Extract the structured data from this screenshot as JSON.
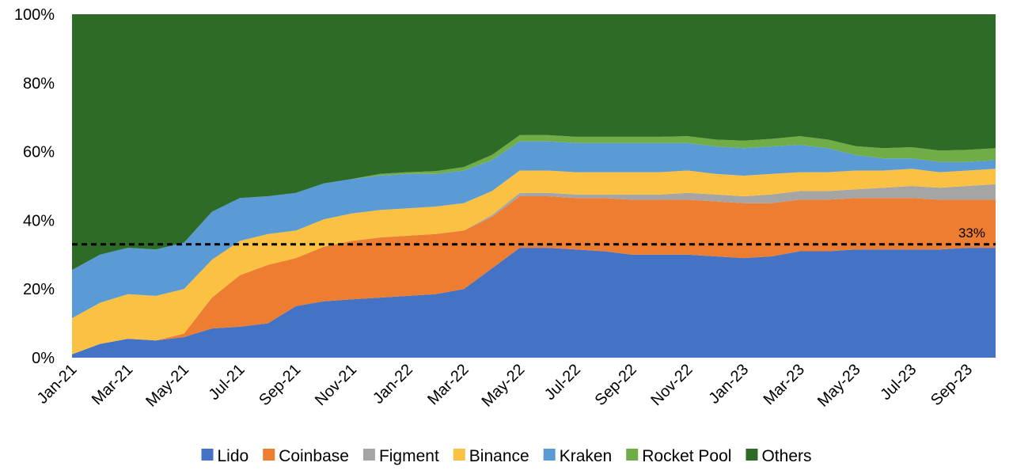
{
  "chart_data": {
    "type": "area",
    "stacked": true,
    "normalized": true,
    "title": "",
    "xlabel": "",
    "ylabel": "",
    "ylim": [
      0,
      100
    ],
    "y_ticks": [
      "0%",
      "20%",
      "40%",
      "60%",
      "80%",
      "100%"
    ],
    "x_tick_labels": [
      "Jan-21",
      "Mar-21",
      "May-21",
      "Jul-21",
      "Sep-21",
      "Nov-21",
      "Jan-22",
      "Mar-22",
      "May-22",
      "Jul-22",
      "Sep-22",
      "Nov-22",
      "Jan-23",
      "Mar-23",
      "May-23",
      "Jul-23",
      "Sep-23"
    ],
    "categories": [
      "Jan-21",
      "Feb-21",
      "Mar-21",
      "Apr-21",
      "May-21",
      "Jun-21",
      "Jul-21",
      "Aug-21",
      "Sep-21",
      "Oct-21",
      "Nov-21",
      "Dec-21",
      "Jan-22",
      "Feb-22",
      "Mar-22",
      "Apr-22",
      "May-22",
      "Jun-22",
      "Jul-22",
      "Aug-22",
      "Sep-22",
      "Oct-22",
      "Nov-22",
      "Dec-22",
      "Jan-23",
      "Feb-23",
      "Mar-23",
      "Apr-23",
      "May-23",
      "Jun-23",
      "Jul-23",
      "Aug-23",
      "Sep-23",
      "Oct-23"
    ],
    "legend_position": "bottom",
    "series": [
      {
        "name": "Lido",
        "color": "#4472C4",
        "values": [
          1,
          4,
          5.5,
          5,
          6,
          8.5,
          9,
          10,
          15,
          16.5,
          17,
          17.5,
          18,
          18.5,
          20,
          26,
          32,
          32,
          31.5,
          31,
          30,
          30,
          30,
          29.5,
          29,
          29.5,
          31,
          31,
          31.5,
          31.5,
          31.5,
          31.5,
          32,
          32
        ]
      },
      {
        "name": "Coinbase",
        "color": "#ED7D31",
        "values": [
          0,
          0,
          0,
          0,
          1,
          9,
          15,
          17,
          14,
          16,
          17,
          17.5,
          17.5,
          17.5,
          17,
          15,
          15,
          15,
          15,
          15.5,
          16,
          16,
          16,
          16,
          16,
          15.5,
          15,
          15,
          15,
          15,
          15,
          14.5,
          14,
          14
        ]
      },
      {
        "name": "Figment",
        "color": "#A5A5A5",
        "values": [
          0,
          0,
          0,
          0,
          0,
          0,
          0,
          0,
          0,
          0,
          0,
          0,
          0,
          0,
          0,
          0.5,
          1,
          1,
          1,
          1,
          1.5,
          1.5,
          2,
          2,
          2,
          2.5,
          2.5,
          2.5,
          2.5,
          3,
          3.5,
          3.5,
          4,
          4.5
        ]
      },
      {
        "name": "Binance",
        "color": "#FBC143",
        "values": [
          10.5,
          12,
          13,
          13,
          13,
          11,
          10,
          9,
          8,
          8,
          8,
          8,
          8,
          8,
          8,
          7,
          6.5,
          6.5,
          6.5,
          6.5,
          6.5,
          6.5,
          6.5,
          6,
          6,
          6,
          5.5,
          5.5,
          5.5,
          5,
          5,
          4.5,
          4.5,
          4.5
        ]
      },
      {
        "name": "Kraken",
        "color": "#5B9BD5",
        "values": [
          14,
          14,
          13.5,
          13.5,
          13.5,
          14,
          12.5,
          11,
          11,
          10.5,
          10,
          10,
          10,
          9.5,
          9.5,
          9,
          8.5,
          8.5,
          8.5,
          8.5,
          8.5,
          8.5,
          8,
          8,
          8,
          8,
          8,
          7,
          4.5,
          3.5,
          3,
          3,
          2.5,
          2.5
        ]
      },
      {
        "name": "Rocket Pool",
        "color": "#70AD47",
        "values": [
          0,
          0,
          0,
          0,
          0,
          0,
          0,
          0,
          0,
          0,
          0,
          0.5,
          0.5,
          0.8,
          1,
          1.5,
          1.8,
          1.8,
          1.8,
          1.8,
          1.8,
          1.8,
          2,
          2,
          2.2,
          2.2,
          2.5,
          2.5,
          2.6,
          3,
          3.3,
          3.3,
          3.5,
          3.5
        ]
      },
      {
        "name": "Others",
        "color": "#2E6B26",
        "values": [
          74.5,
          70,
          68,
          68.5,
          66.5,
          57.5,
          53.5,
          53,
          52,
          49.5,
          48,
          46.5,
          46,
          45.7,
          44.5,
          41,
          35.2,
          35.2,
          35.7,
          35.7,
          35.7,
          35.7,
          35.5,
          36.5,
          36.8,
          36.3,
          35.5,
          36.5,
          38.4,
          39,
          38.7,
          39.7,
          39.5,
          39
        ]
      }
    ],
    "reference_line": {
      "value": 33,
      "label": "33%",
      "style": "dashed",
      "color": "#000000"
    }
  }
}
